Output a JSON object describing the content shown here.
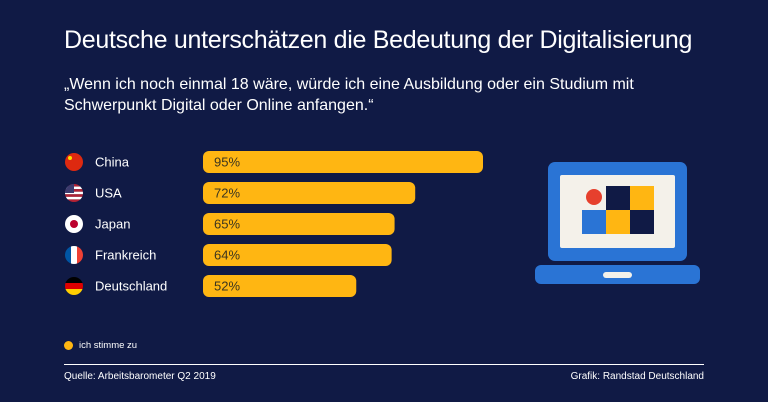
{
  "header": {
    "title": "Deutsche unterschätzen die Bedeutung der Digitalisierung",
    "subtitle": "„Wenn ich noch einmal 18 wäre, würde ich eine Ausbildung oder ein Studium mit Schwerpunkt Digital oder Online anfangen.“"
  },
  "chart_data": {
    "type": "bar",
    "orientation": "horizontal",
    "categories": [
      "China",
      "USA",
      "Japan",
      "Frankreich",
      "Deutschland"
    ],
    "series": [
      {
        "name": "ich stimme zu",
        "values": [
          95,
          72,
          65,
          64,
          52
        ]
      }
    ],
    "data_labels": [
      "95%",
      "72%",
      "65%",
      "64%",
      "52%"
    ],
    "flag_icons": [
      "china-flag-icon",
      "usa-flag-icon",
      "japan-flag-icon",
      "france-flag-icon",
      "germany-flag-icon"
    ],
    "xlim": [
      0,
      100
    ],
    "grid": false,
    "legend_position": "bottom-left",
    "bar_color": "#ffb612"
  },
  "legend": {
    "label": "ich stimme zu"
  },
  "footer": {
    "source": "Quelle: Arbeitsbarometer Q2 2019",
    "credit": "Grafik: Randstad Deutschland"
  },
  "illustration": {
    "icon": "laptop-icon"
  },
  "colors": {
    "background": "#101a45",
    "accent": "#ffb612",
    "blue": "#2a74d5",
    "red": "#e6402d"
  }
}
